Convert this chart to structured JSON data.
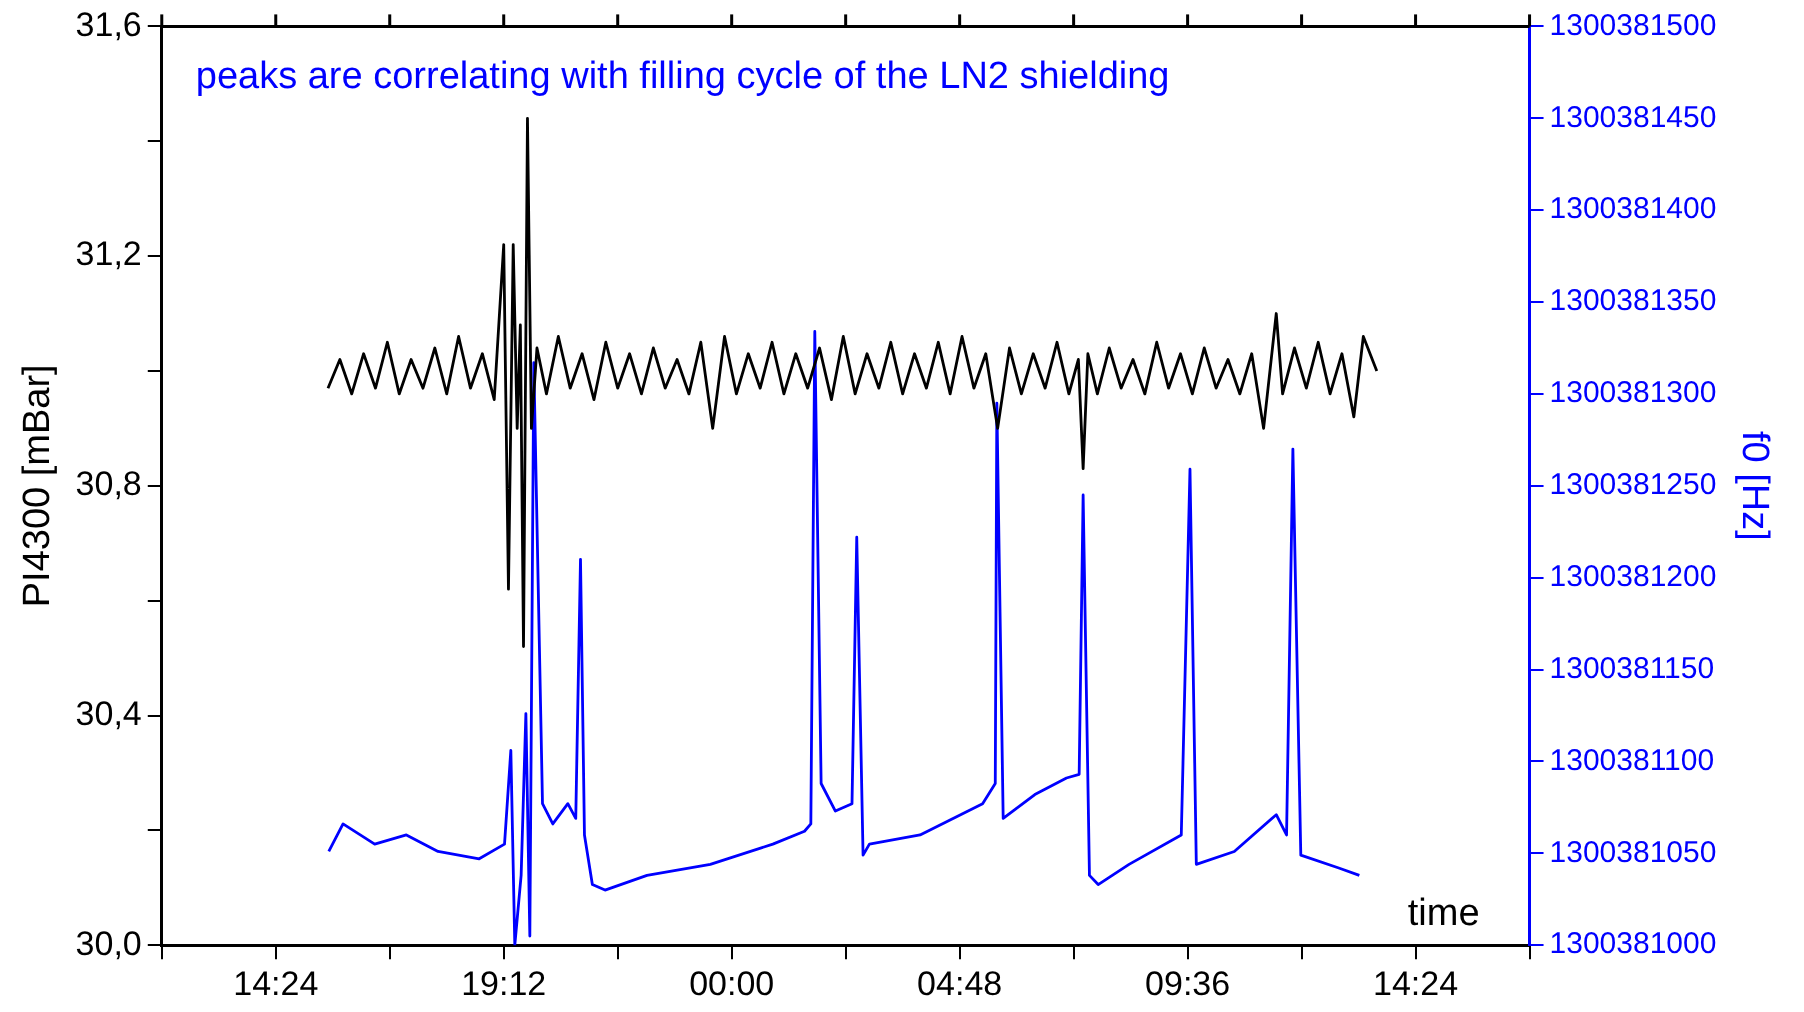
{
  "chart_data": {
    "type": "line",
    "xlabel": "time",
    "ylabel": "PI4300 [mBar]",
    "y2label": "f0 [Hz]",
    "annotations": [
      "peaks are correlating with filling cycle of the LN2 shielding"
    ],
    "xlim": [
      "2000-01-01T12:00",
      "2000-01-02T16:48"
    ],
    "xticks": [
      {
        "value": "2000-01-01T12:00",
        "label": null
      },
      {
        "value": "2000-01-01T14:24",
        "label": "14:24"
      },
      {
        "value": "2000-01-01T16:48",
        "label": null
      },
      {
        "value": "2000-01-01T19:12",
        "label": "19:12"
      },
      {
        "value": "2000-01-01T21:36",
        "label": null
      },
      {
        "value": "2000-01-02T00:00",
        "label": "00:00"
      },
      {
        "value": "2000-01-02T02:24",
        "label": null
      },
      {
        "value": "2000-01-02T04:48",
        "label": "04:48"
      },
      {
        "value": "2000-01-02T07:12",
        "label": null
      },
      {
        "value": "2000-01-02T09:36",
        "label": "09:36"
      },
      {
        "value": "2000-01-02T12:00",
        "label": null
      },
      {
        "value": "2000-01-02T14:24",
        "label": "14:24"
      },
      {
        "value": "2000-01-02T16:48",
        "label": null
      }
    ],
    "ylim": [
      30,
      31.6
    ],
    "yticks": [
      {
        "value": 30,
        "label": "30,0"
      },
      {
        "value": 30.2,
        "label": null
      },
      {
        "value": 30.4,
        "label": "30,4"
      },
      {
        "value": 30.6,
        "label": null
      },
      {
        "value": 30.8,
        "label": "30,8"
      },
      {
        "value": 31,
        "label": null
      },
      {
        "value": 31.2,
        "label": "31,2"
      },
      {
        "value": 31.4,
        "label": null
      },
      {
        "value": 31.6,
        "label": "31,6"
      }
    ],
    "y2lim": [
      1300381000,
      1300381500
    ],
    "y2ticks": [
      1300381000,
      1300381050,
      1300381100,
      1300381150,
      1300381200,
      1300381250,
      1300381300,
      1300381350,
      1300381400,
      1300381450,
      1300381500
    ],
    "grid": false,
    "legend": false,
    "marker": "none",
    "line_style": "solid",
    "series": [
      {
        "color": "#000000",
        "x": [
          "2000-01-01T15:30",
          "2000-01-01T15:45",
          "2000-01-01T16:00",
          "2000-01-01T16:15",
          "2000-01-01T16:30",
          "2000-01-01T16:45",
          "2000-01-01T17:00",
          "2000-01-01T17:15",
          "2000-01-01T17:30",
          "2000-01-01T17:45",
          "2000-01-01T18:00",
          "2000-01-01T18:15",
          "2000-01-01T18:30",
          "2000-01-01T18:45",
          "2000-01-01T19:00",
          "2000-01-01T19:12",
          "2000-01-01T19:18",
          "2000-01-01T19:24",
          "2000-01-01T19:29",
          "2000-01-01T19:33",
          "2000-01-01T19:37",
          "2000-01-01T19:42",
          "2000-01-01T19:47",
          "2000-01-01T19:54",
          "2000-01-01T20:06",
          "2000-01-01T20:21",
          "2000-01-01T20:36",
          "2000-01-01T20:51",
          "2000-01-01T21:06",
          "2000-01-01T21:21",
          "2000-01-01T21:36",
          "2000-01-01T21:51",
          "2000-01-01T22:06",
          "2000-01-01T22:21",
          "2000-01-01T22:36",
          "2000-01-01T22:51",
          "2000-01-01T23:06",
          "2000-01-01T23:21",
          "2000-01-01T23:36",
          "2000-01-01T23:51",
          "2000-01-02T00:06",
          "2000-01-02T00:21",
          "2000-01-02T00:36",
          "2000-01-02T00:51",
          "2000-01-02T01:06",
          "2000-01-02T01:21",
          "2000-01-02T01:36",
          "2000-01-02T01:51",
          "2000-01-02T02:06",
          "2000-01-02T02:21",
          "2000-01-02T02:36",
          "2000-01-02T02:51",
          "2000-01-02T03:06",
          "2000-01-02T03:21",
          "2000-01-02T03:36",
          "2000-01-02T03:51",
          "2000-01-02T04:06",
          "2000-01-02T04:21",
          "2000-01-02T04:36",
          "2000-01-02T04:51",
          "2000-01-02T05:06",
          "2000-01-02T05:21",
          "2000-01-02T05:36",
          "2000-01-02T05:51",
          "2000-01-02T06:06",
          "2000-01-02T06:21",
          "2000-01-02T06:36",
          "2000-01-02T06:51",
          "2000-01-02T07:06",
          "2000-01-02T07:18",
          "2000-01-02T07:24",
          "2000-01-02T07:30",
          "2000-01-02T07:42",
          "2000-01-02T07:57",
          "2000-01-02T08:12",
          "2000-01-02T08:27",
          "2000-01-02T08:42",
          "2000-01-02T08:57",
          "2000-01-02T09:12",
          "2000-01-02T09:27",
          "2000-01-02T09:42",
          "2000-01-02T09:57",
          "2000-01-02T10:12",
          "2000-01-02T10:27",
          "2000-01-02T10:42",
          "2000-01-02T10:57",
          "2000-01-02T11:12",
          "2000-01-02T11:28",
          "2000-01-02T11:36",
          "2000-01-02T11:51",
          "2000-01-02T12:06",
          "2000-01-02T12:21",
          "2000-01-02T12:36",
          "2000-01-02T12:51",
          "2000-01-02T13:06",
          "2000-01-02T13:18",
          "2000-01-02T13:35"
        ],
        "values": [
          30.97,
          31.02,
          30.96,
          31.03,
          30.97,
          31.05,
          30.96,
          31.02,
          30.97,
          31.04,
          30.96,
          31.06,
          30.97,
          31.03,
          30.95,
          31.22,
          30.62,
          31.22,
          30.9,
          31.08,
          30.52,
          31.44,
          30.9,
          31.04,
          30.96,
          31.06,
          30.97,
          31.03,
          30.95,
          31.05,
          30.97,
          31.03,
          30.96,
          31.04,
          30.97,
          31.02,
          30.96,
          31.05,
          30.9,
          31.06,
          30.96,
          31.03,
          30.97,
          31.05,
          30.96,
          31.03,
          30.97,
          31.04,
          30.95,
          31.06,
          30.96,
          31.03,
          30.97,
          31.05,
          30.96,
          31.03,
          30.97,
          31.05,
          30.96,
          31.06,
          30.97,
          31.03,
          30.9,
          31.04,
          30.96,
          31.03,
          30.97,
          31.05,
          30.96,
          31.02,
          30.83,
          31.03,
          30.96,
          31.04,
          30.97,
          31.02,
          30.96,
          31.05,
          30.97,
          31.03,
          30.96,
          31.04,
          30.97,
          31.02,
          30.96,
          31.03,
          30.9,
          31.1,
          30.96,
          31.04,
          30.97,
          31.05,
          30.96,
          31.03,
          30.92,
          31.06,
          31.0
        ]
      },
      {
        "color": "#0000ff",
        "axis": "y2",
        "x": [
          "2000-01-01T15:31",
          "2000-01-01T15:49",
          "2000-01-01T16:29",
          "2000-01-01T17:09",
          "2000-01-01T17:49",
          "2000-01-01T18:41",
          "2000-01-01T19:13",
          "2000-01-01T19:21",
          "2000-01-01T19:26",
          "2000-01-01T19:34",
          "2000-01-01T19:40",
          "2000-01-01T19:45",
          "2000-01-01T19:50",
          "2000-01-01T20:01",
          "2000-01-01T20:14",
          "2000-01-01T20:33",
          "2000-01-01T20:43",
          "2000-01-01T20:49",
          "2000-01-01T20:54",
          "2000-01-01T21:04",
          "2000-01-01T21:20",
          "2000-01-01T22:13",
          "2000-01-01T23:33",
          "2000-01-02T00:52",
          "2000-01-02T01:32",
          "2000-01-02T01:40",
          "2000-01-02T01:45",
          "2000-01-02T01:53",
          "2000-01-02T02:11",
          "2000-01-02T02:32",
          "2000-01-02T02:38",
          "2000-01-02T02:46",
          "2000-01-02T02:54",
          "2000-01-02T03:58",
          "2000-01-02T05:17",
          "2000-01-02T05:33",
          "2000-01-02T05:35",
          "2000-01-02T05:43",
          "2000-01-02T06:23",
          "2000-01-02T07:03",
          "2000-01-02T07:19",
          "2000-01-02T07:24",
          "2000-01-02T07:32",
          "2000-01-02T07:43",
          "2000-01-02T08:22",
          "2000-01-02T09:28",
          "2000-01-02T09:39",
          "2000-01-02T09:47",
          "2000-01-02T10:35",
          "2000-01-02T11:28",
          "2000-01-02T11:41",
          "2000-01-02T11:49",
          "2000-01-02T11:59",
          "2000-01-02T12:47",
          "2000-01-02T13:13"
        ],
        "values": [
          1300381051,
          1300381066,
          1300381055,
          1300381060,
          1300381051,
          1300381047,
          1300381055,
          1300381106,
          1300381000,
          1300381038,
          1300381126,
          1300381005,
          1300381317,
          1300381077,
          1300381066,
          1300381077,
          1300381069,
          1300381210,
          1300381060,
          1300381033,
          1300381030,
          1300381038,
          1300381044,
          1300381055,
          1300381062,
          1300381066,
          1300381334,
          1300381088,
          1300381073,
          1300381077,
          1300381222,
          1300381049,
          1300381055,
          1300381060,
          1300381077,
          1300381088,
          1300381295,
          1300381069,
          1300381082,
          1300381091,
          1300381093,
          1300381245,
          1300381038,
          1300381033,
          1300381044,
          1300381060,
          1300381259,
          1300381044,
          1300381051,
          1300381071,
          1300381060,
          1300381270,
          1300381049,
          1300381042,
          1300381038
        ]
      }
    ]
  }
}
